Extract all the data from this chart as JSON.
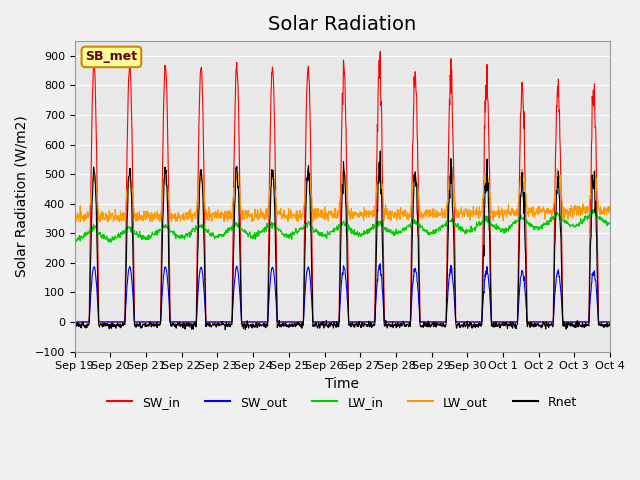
{
  "title": "Solar Radiation",
  "xlabel": "Time",
  "ylabel": "Solar Radiation (W/m2)",
  "ylim": [
    -100,
    950
  ],
  "yticks": [
    -100,
    0,
    100,
    200,
    300,
    400,
    500,
    600,
    700,
    800,
    900
  ],
  "background_color": "#e8e8e8",
  "colors": {
    "SW_in": "#ff0000",
    "SW_out": "#0000ff",
    "LW_in": "#00cc00",
    "LW_out": "#ff9900",
    "Rnet": "#000000"
  },
  "annotation_text": "SB_met",
  "annotation_box_color": "#ffff99",
  "annotation_box_edge": "#cc8800",
  "x_tick_labels": [
    "Sep 19",
    "Sep 20",
    "Sep 21",
    "Sep 22",
    "Sep 23",
    "Sep 24",
    "Sep 25",
    "Sep 26",
    "Sep 27",
    "Sep 28",
    "Sep 29",
    "Sep 30",
    "Oct 1",
    "Oct 2",
    "Oct 3",
    "Oct 4"
  ],
  "n_days": 15,
  "title_fontsize": 14,
  "label_fontsize": 10,
  "tick_fontsize": 8
}
